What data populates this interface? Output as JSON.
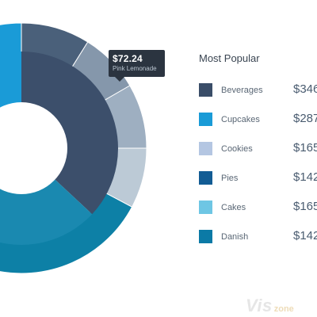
{
  "chart_data": {
    "type": "pie",
    "title": "Most Popular",
    "inner_segments": [
      {
        "name": "Beverages",
        "color": "#3c4f6b",
        "start_deg": 0,
        "end_deg": 133
      },
      {
        "name": "Cupcakes",
        "color": "#1a89b0",
        "start_deg": 133,
        "end_deg": 270
      },
      {
        "name": "Cupcakes",
        "color": "#1a9bd7",
        "start_deg": 270,
        "end_deg": 360
      }
    ],
    "outer_segments": [
      {
        "color": "#4a607a",
        "start_deg": 0,
        "end_deg": 32
      },
      {
        "color": "#8597ab",
        "start_deg": 32,
        "end_deg": 60
      },
      {
        "color": "#9eafc1",
        "start_deg": 60,
        "end_deg": 90
      },
      {
        "color": "#bccad6",
        "start_deg": 90,
        "end_deg": 118
      },
      {
        "color": "#0d80a6",
        "start_deg": 118,
        "end_deg": 270
      },
      {
        "color": "#1a9bd7",
        "start_deg": 270,
        "end_deg": 360
      }
    ],
    "legend": [
      {
        "label": "Beverages",
        "value": "$346",
        "color": "#3a4d68"
      },
      {
        "label": "Cupcakes",
        "value": "$287",
        "color": "#1a9bd7"
      },
      {
        "label": "Cookies",
        "value": "$165",
        "color": "#b4c6e2"
      },
      {
        "label": "Pies",
        "value": "$142",
        "color": "#125c94"
      },
      {
        "label": "Cakes",
        "value": "$165",
        "color": "#6ec6e4"
      },
      {
        "label": "Danish",
        "value": "$142",
        "color": "#0b7aa6"
      }
    ],
    "tooltip": {
      "value": "$72.24",
      "label": "Pink Lemonade"
    }
  },
  "watermark": {
    "main": "Vis",
    "sub": "zone"
  }
}
